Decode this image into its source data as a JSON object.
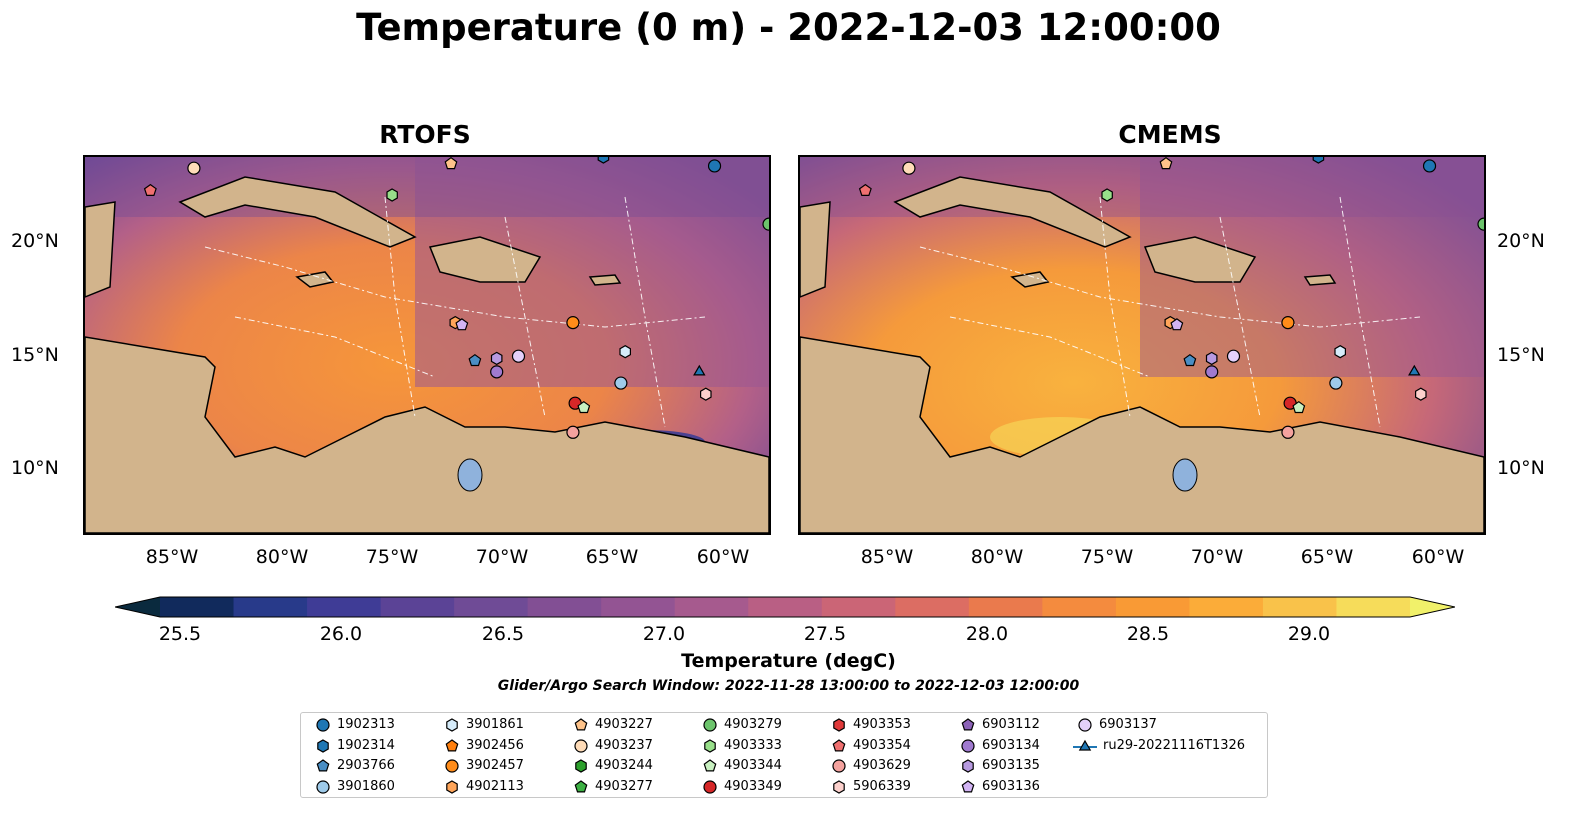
{
  "title": "Temperature (0 m) - 2022-12-03 12:00:00",
  "panels": [
    {
      "title": "RTOFS"
    },
    {
      "title": "CMEMS"
    }
  ],
  "lat_labels": [
    "20°N",
    "15°N",
    "10°N"
  ],
  "lon_labels": [
    "85°W",
    "80°W",
    "75°W",
    "70°W",
    "65°W",
    "60°W"
  ],
  "colorbar": {
    "label": "Temperature (degC)",
    "ticks": [
      "25.5",
      "26.0",
      "26.5",
      "27.0",
      "27.5",
      "28.0",
      "28.5",
      "29.0"
    ],
    "range": [
      25.4,
      29.3
    ],
    "colors": [
      "#0a2a3e",
      "#112a5c",
      "#283a8a",
      "#3f3c96",
      "#5b4396",
      "#6f4b96",
      "#824f94",
      "#935493",
      "#a65a8e",
      "#b95f84",
      "#cb6576",
      "#dc6d63",
      "#ea7a4d",
      "#f48b3e",
      "#f99a35",
      "#fbac39",
      "#f9c24a",
      "#f6dc5a",
      "#f1f16a"
    ]
  },
  "search_window": "Glider/Argo Search Window: 2022-11-28 13:00:00 to 2022-12-03 12:00:00",
  "legend": [
    {
      "label": "1902313",
      "marker": "circle",
      "color": "#1f77b4"
    },
    {
      "label": "1902314",
      "marker": "hexagon",
      "color": "#1f77b4"
    },
    {
      "label": "2903766",
      "marker": "pentagon",
      "color": "#4a8ec4"
    },
    {
      "label": "3901860",
      "marker": "circle",
      "color": "#9ecae9"
    },
    {
      "label": "3901861",
      "marker": "hexagon",
      "color": "#d6ecfa"
    },
    {
      "label": "3902456",
      "marker": "pentagon",
      "color": "#ff7f0e"
    },
    {
      "label": "3902457",
      "marker": "circle",
      "color": "#ff8c1a"
    },
    {
      "label": "4902113",
      "marker": "hexagon",
      "color": "#ffa55a"
    },
    {
      "label": "4903227",
      "marker": "pentagon",
      "color": "#ffc38a"
    },
    {
      "label": "4903237",
      "marker": "circle",
      "color": "#ffdcb8"
    },
    {
      "label": "4903244",
      "marker": "hexagon",
      "color": "#2ca02c"
    },
    {
      "label": "4903277",
      "marker": "pentagon",
      "color": "#3cb043"
    },
    {
      "label": "4903279",
      "marker": "circle",
      "color": "#6cc46c"
    },
    {
      "label": "4903333",
      "marker": "hexagon",
      "color": "#98df8a"
    },
    {
      "label": "4903344",
      "marker": "pentagon",
      "color": "#c8f0c0"
    },
    {
      "label": "4903349",
      "marker": "circle",
      "color": "#d62728"
    },
    {
      "label": "4903353",
      "marker": "hexagon",
      "color": "#e0393a"
    },
    {
      "label": "4903354",
      "marker": "pentagon",
      "color": "#f07070"
    },
    {
      "label": "4903629",
      "marker": "circle",
      "color": "#f4a29e"
    },
    {
      "label": "5906339",
      "marker": "hexagon",
      "color": "#fcd0cc"
    },
    {
      "label": "6903112",
      "marker": "pentagon",
      "color": "#8c62b8"
    },
    {
      "label": "6903134",
      "marker": "circle",
      "color": "#a07ad0"
    },
    {
      "label": "6903135",
      "marker": "hexagon",
      "color": "#b79ae0"
    },
    {
      "label": "6903136",
      "marker": "pentagon",
      "color": "#d2b4f4"
    },
    {
      "label": "6903137",
      "marker": "circle",
      "color": "#e4d0fa"
    },
    {
      "label": "ru29-20221116T1326",
      "marker": "triangle-line",
      "color": "#1f77b4"
    }
  ],
  "markers": [
    {
      "id": "4903237",
      "marker": "circle",
      "color": "#ffdcb8",
      "lon": -84.2,
      "lat": 23.3
    },
    {
      "id": "4903354",
      "marker": "pentagon",
      "color": "#f07070",
      "lon": -86.2,
      "lat": 22.3
    },
    {
      "id": "4903227",
      "marker": "pentagon",
      "color": "#ffc38a",
      "lon": -72.4,
      "lat": 23.5
    },
    {
      "id": "4903333",
      "marker": "hexagon",
      "color": "#98df8a",
      "lon": -75.1,
      "lat": 22.1
    },
    {
      "id": "1902314",
      "marker": "hexagon",
      "color": "#1f77b4",
      "lon": -65.4,
      "lat": 23.8
    },
    {
      "id": "1902313",
      "marker": "circle",
      "color": "#1f77b4",
      "lon": -60.3,
      "lat": 23.4
    },
    {
      "id": "4903279",
      "marker": "circle",
      "color": "#6cc46c",
      "lon": -57.8,
      "lat": 20.8
    },
    {
      "id": "4902113",
      "marker": "hexagon",
      "color": "#ffa55a",
      "lon": -72.2,
      "lat": 16.4
    },
    {
      "id": "6903136",
      "marker": "pentagon",
      "color": "#d2b4f4",
      "lon": -71.9,
      "lat": 16.3
    },
    {
      "id": "3902457",
      "marker": "circle",
      "color": "#ff8c1a",
      "lon": -66.8,
      "lat": 16.4
    },
    {
      "id": "2903766",
      "marker": "pentagon",
      "color": "#4a8ec4",
      "lon": -71.3,
      "lat": 14.7
    },
    {
      "id": "6903135",
      "marker": "hexagon",
      "color": "#b79ae0",
      "lon": -70.3,
      "lat": 14.8
    },
    {
      "id": "6903134",
      "marker": "circle",
      "color": "#a07ad0",
      "lon": -70.3,
      "lat": 14.2
    },
    {
      "id": "6903137",
      "marker": "circle",
      "color": "#e4d0fa",
      "lon": -69.3,
      "lat": 14.9
    },
    {
      "id": "3901861",
      "marker": "hexagon",
      "color": "#d6ecfa",
      "lon": -64.4,
      "lat": 15.1
    },
    {
      "id": "3901860",
      "marker": "circle",
      "color": "#9ecae9",
      "lon": -64.6,
      "lat": 13.7
    },
    {
      "id": "ru29-20221116T1326",
      "marker": "triangle",
      "color": "#1f77b4",
      "lon": -61.0,
      "lat": 14.2
    },
    {
      "id": "5906339",
      "marker": "hexagon",
      "color": "#fcd0cc",
      "lon": -60.7,
      "lat": 13.2
    },
    {
      "id": "4903349",
      "marker": "circle",
      "color": "#d62728",
      "lon": -66.7,
      "lat": 12.8
    },
    {
      "id": "4903344",
      "marker": "pentagon",
      "color": "#c8f0c0",
      "lon": -66.3,
      "lat": 12.6
    },
    {
      "id": "4903629",
      "marker": "circle",
      "color": "#f4a29e",
      "lon": -66.8,
      "lat": 11.5
    }
  ]
}
